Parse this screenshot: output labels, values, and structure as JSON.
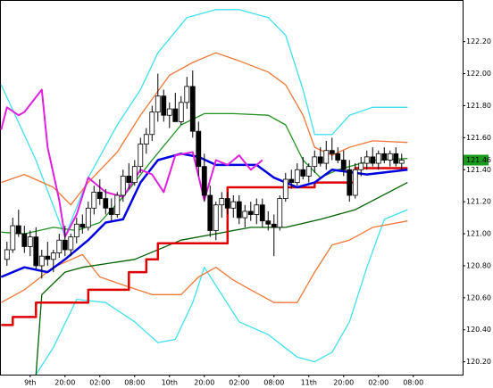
{
  "chart_data": {
    "type": "candlestick",
    "xlim": [
      -1.2,
      78.5
    ],
    "ylim": [
      120.12,
      122.46
    ],
    "yticks": [
      {
        "value": 120.2,
        "label": "120.20"
      },
      {
        "value": 120.4,
        "label": "120.40"
      },
      {
        "value": 120.6,
        "label": "120.60"
      },
      {
        "value": 120.8,
        "label": "120.80"
      },
      {
        "value": 121,
        "label": "121.00"
      },
      {
        "value": 121.2,
        "label": "121.20"
      },
      {
        "value": 121.4,
        "label": "121.40"
      },
      {
        "value": 121.6,
        "label": "121.60"
      },
      {
        "value": 121.8,
        "label": "121.80"
      },
      {
        "value": 122,
        "label": "122.00"
      },
      {
        "value": 122.2,
        "label": "122.20"
      }
    ],
    "xticks": [
      {
        "value": 4,
        "label": "9th"
      },
      {
        "value": 10,
        "label": "20:00"
      },
      {
        "value": 16,
        "label": "02:00"
      },
      {
        "value": 22,
        "label": "08:00"
      },
      {
        "value": 28,
        "label": "10th"
      },
      {
        "value": 34,
        "label": "20:00"
      },
      {
        "value": 40,
        "label": "02:00"
      },
      {
        "value": 46,
        "label": "08:00"
      },
      {
        "value": 52,
        "label": "11th"
      },
      {
        "value": 58,
        "label": "20:00"
      },
      {
        "value": 64,
        "label": "02:00"
      },
      {
        "value": 70,
        "label": "08:00"
      }
    ],
    "last": 121.46,
    "last_color": "#1a9a1a",
    "candles": {
      "up_color": "#ffffff",
      "down_color": "#000000",
      "open": [
        120.84,
        120.9,
        121.05,
        121.0,
        120.92,
        120.98,
        120.8,
        120.86,
        120.84,
        120.88,
        120.96,
        120.9,
        120.98,
        121.06,
        121.04,
        121.16,
        121.26,
        121.22,
        121.16,
        121.12,
        121.24,
        121.36,
        121.32,
        121.42,
        121.56,
        121.62,
        121.76,
        121.86,
        121.74,
        121.78,
        121.7,
        121.82,
        121.92,
        121.64,
        121.42,
        121.24,
        121.02,
        121.18,
        121.22,
        121.16,
        121.2,
        121.1,
        121.14,
        121.12,
        121.18,
        121.08,
        121.06,
        121.04,
        121.22,
        121.34,
        121.32,
        121.4,
        121.36,
        121.42,
        121.48,
        121.44,
        121.52,
        121.5,
        121.46,
        121.4,
        121.24,
        121.4,
        121.44,
        121.48,
        121.44,
        121.5,
        121.46,
        121.5,
        121.44
      ],
      "high": [
        120.95,
        121.1,
        121.15,
        121.05,
        121.02,
        121.04,
        120.9,
        120.95,
        120.9,
        121.0,
        121.05,
        121.0,
        121.1,
        121.12,
        121.2,
        121.3,
        121.34,
        121.28,
        121.22,
        121.26,
        121.4,
        121.44,
        121.46,
        121.6,
        121.66,
        121.8,
        122.0,
        121.9,
        121.82,
        121.88,
        121.86,
        121.98,
        122.02,
        121.7,
        121.5,
        121.3,
        121.2,
        121.26,
        121.26,
        121.24,
        121.24,
        121.18,
        121.2,
        121.22,
        121.22,
        121.14,
        121.12,
        121.24,
        121.38,
        121.4,
        121.44,
        121.48,
        121.44,
        121.52,
        121.54,
        121.58,
        121.6,
        121.54,
        121.52,
        121.46,
        121.44,
        121.48,
        121.52,
        121.54,
        121.52,
        121.54,
        121.52,
        121.54,
        121.5
      ],
      "low": [
        120.8,
        120.88,
        120.98,
        120.88,
        120.86,
        120.78,
        120.72,
        120.8,
        120.76,
        120.85,
        120.86,
        120.86,
        120.94,
        121.0,
        121.02,
        121.12,
        121.18,
        121.12,
        121.08,
        121.1,
        121.2,
        121.28,
        121.3,
        121.38,
        121.5,
        121.58,
        121.7,
        121.7,
        121.66,
        121.72,
        121.68,
        121.78,
        121.6,
        121.36,
        121.2,
        120.98,
        120.96,
        121.1,
        121.12,
        121.1,
        121.06,
        121.04,
        121.08,
        121.06,
        121.04,
        121.02,
        120.86,
        121.02,
        121.2,
        121.28,
        121.3,
        121.34,
        121.32,
        121.38,
        121.42,
        121.4,
        121.46,
        121.44,
        121.36,
        121.2,
        121.22,
        121.36,
        121.4,
        121.42,
        121.4,
        121.44,
        121.42,
        121.42,
        121.4
      ],
      "close": [
        120.9,
        121.05,
        121.0,
        120.92,
        120.98,
        120.8,
        120.86,
        120.84,
        120.88,
        120.96,
        120.9,
        120.98,
        121.06,
        121.04,
        121.16,
        121.26,
        121.22,
        121.16,
        121.12,
        121.24,
        121.36,
        121.32,
        121.42,
        121.56,
        121.62,
        121.76,
        121.86,
        121.74,
        121.78,
        121.7,
        121.82,
        121.92,
        121.64,
        121.42,
        121.24,
        121.02,
        121.18,
        121.22,
        121.16,
        121.2,
        121.1,
        121.14,
        121.12,
        121.18,
        121.08,
        121.06,
        121.04,
        121.22,
        121.34,
        121.32,
        121.4,
        121.36,
        121.42,
        121.48,
        121.44,
        121.52,
        121.5,
        121.46,
        121.4,
        121.24,
        121.4,
        121.44,
        121.48,
        121.44,
        121.5,
        121.46,
        121.5,
        121.44,
        121.46
      ]
    },
    "lines": [
      {
        "color": "#40e0f0",
        "width": 1.3,
        "x": [
          -1,
          5,
          10,
          14,
          19,
          23,
          26,
          31,
          36,
          40,
          45,
          48,
          51,
          53,
          56,
          59,
          63,
          69
        ],
        "values": [
          121.93,
          121.46,
          120.98,
          121.35,
          121.68,
          121.9,
          122.13,
          122.35,
          122.4,
          122.4,
          122.35,
          122.24,
          121.9,
          121.62,
          121.62,
          121.74,
          121.79,
          121.79
        ]
      },
      {
        "color": "#40e0f0",
        "width": 1.3,
        "x": [
          5,
          8,
          12,
          17,
          22,
          26,
          29,
          32,
          34,
          37,
          40,
          45,
          50,
          53,
          56,
          59,
          62,
          65,
          69
        ],
        "values": [
          120.12,
          120.29,
          120.59,
          120.57,
          120.45,
          120.32,
          120.34,
          120.57,
          120.79,
          120.62,
          120.45,
          120.37,
          120.23,
          120.2,
          120.26,
          120.45,
          120.79,
          121.09,
          121.15
        ]
      },
      {
        "color": "#f07838",
        "width": 1.3,
        "x": [
          -1,
          3,
          8,
          11,
          14,
          19,
          23,
          28,
          32,
          36,
          40,
          45,
          48,
          51,
          53,
          56,
          59,
          63,
          69
        ],
        "values": [
          121.32,
          121.37,
          121.29,
          121.18,
          121.32,
          121.51,
          121.74,
          121.99,
          122.07,
          122.13,
          122.08,
          122.01,
          121.93,
          121.74,
          121.54,
          121.49,
          121.54,
          121.58,
          121.57
        ]
      },
      {
        "color": "#f07838",
        "width": 1.3,
        "x": [
          -1,
          3,
          8,
          13,
          16,
          20,
          25,
          30,
          33,
          36,
          39,
          42,
          46,
          50,
          53,
          56,
          59,
          63,
          69
        ],
        "values": [
          120.57,
          120.65,
          120.79,
          120.87,
          120.73,
          120.68,
          120.62,
          120.62,
          120.73,
          120.79,
          120.71,
          120.65,
          120.57,
          120.57,
          120.76,
          120.93,
          120.96,
          121.04,
          121.08
        ]
      },
      {
        "color": "#209020",
        "width": 1.3,
        "x": [
          -1,
          3,
          8,
          12,
          16,
          20,
          25,
          30,
          34,
          39,
          45,
          48,
          51,
          54,
          57,
          63,
          69
        ],
        "values": [
          121.01,
          121.0,
          121.04,
          121.02,
          121.07,
          121.23,
          121.46,
          121.68,
          121.75,
          121.75,
          121.74,
          121.68,
          121.46,
          121.35,
          121.4,
          121.46,
          121.47
        ]
      },
      {
        "color": "#006000",
        "width": 1.3,
        "x": [
          5,
          6,
          10,
          13,
          22,
          30,
          36,
          42,
          48,
          54,
          60,
          69
        ],
        "values": [
          120.12,
          120.62,
          120.76,
          120.79,
          120.84,
          120.96,
          121.0,
          121.04,
          121.04,
          121.09,
          121.15,
          121.32
        ]
      },
      {
        "color": "#e00000",
        "width": 2.5,
        "x": [
          -1,
          1,
          1,
          5,
          5,
          14,
          14,
          21,
          21,
          24,
          24,
          26,
          26,
          38,
          38,
          53,
          53,
          60,
          60,
          69
        ],
        "values": [
          120.43,
          120.43,
          120.48,
          120.48,
          120.57,
          120.57,
          120.65,
          120.65,
          120.76,
          120.76,
          120.84,
          120.84,
          120.94,
          120.94,
          121.29,
          121.29,
          121.32,
          121.32,
          121.41,
          121.41
        ]
      },
      {
        "color": "#0000e0",
        "width": 2.5,
        "x": [
          -1,
          3,
          7,
          10,
          14,
          17,
          20,
          23,
          26,
          30,
          33,
          36,
          43,
          46,
          50,
          53,
          56,
          62,
          69
        ],
        "values": [
          120.73,
          120.79,
          120.76,
          120.84,
          120.96,
          121.07,
          121.09,
          121.32,
          121.46,
          121.5,
          121.48,
          121.43,
          121.43,
          121.35,
          121.29,
          121.32,
          121.4,
          121.37,
          121.4
        ]
      },
      {
        "color": "#e020e0",
        "width": 2,
        "x": [
          -1,
          0,
          2,
          3,
          6,
          7,
          9,
          10,
          12,
          14,
          17,
          20,
          23,
          25,
          27,
          29,
          32,
          34,
          36,
          38,
          40,
          42,
          44
        ],
        "values": [
          121.65,
          121.79,
          121.74,
          121.76,
          121.9,
          121.54,
          121.21,
          120.98,
          121.12,
          121.35,
          121.26,
          121.23,
          121.4,
          121.37,
          121.26,
          121.49,
          121.51,
          121.21,
          121.46,
          121.43,
          121.49,
          121.4,
          121.46
        ]
      }
    ]
  }
}
